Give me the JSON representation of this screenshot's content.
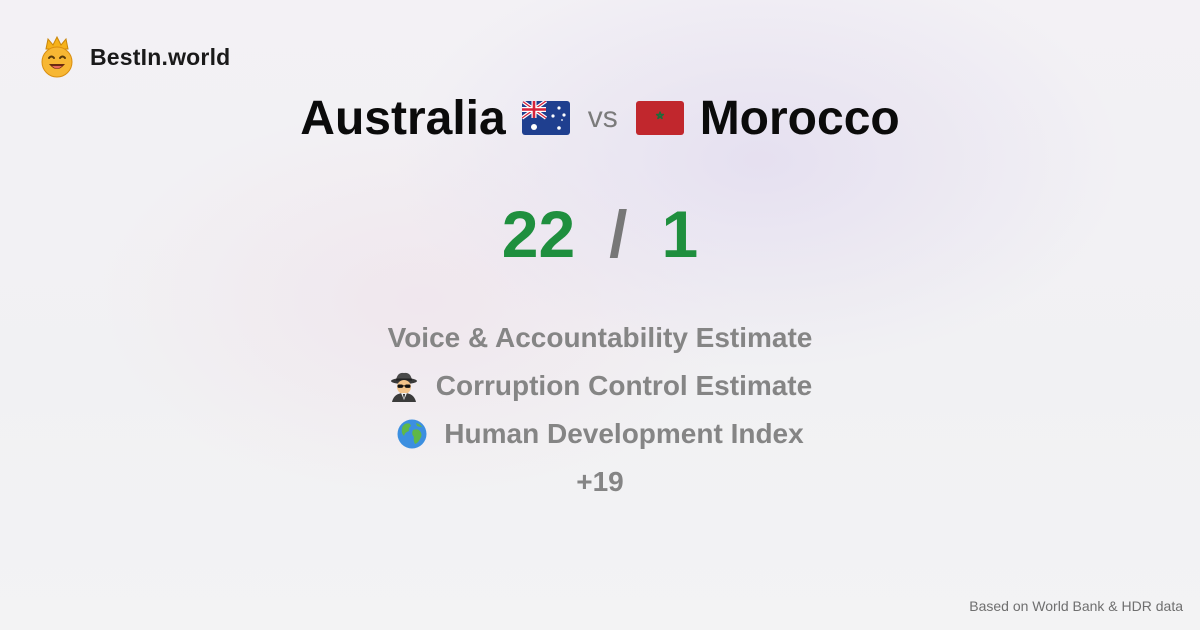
{
  "brand": {
    "name": "BestIn.world",
    "logo_icon": "crown-smiley-icon"
  },
  "comparison": {
    "left_country": "Australia",
    "left_flag_icon": "australia-flag-icon",
    "vs": "vs",
    "right_country": "Morocco",
    "right_flag_icon": "morocco-flag-icon"
  },
  "score": {
    "left": "22",
    "separator": "/",
    "right": "1",
    "color": "#1f8f3e"
  },
  "metrics": [
    {
      "label": "Voice & Accountability Estimate",
      "icon": ""
    },
    {
      "label": "Corruption Control Estimate",
      "icon": "spy-icon"
    },
    {
      "label": "Human Development Index",
      "icon": "globe-icon"
    }
  ],
  "more": "+19",
  "footer": "Based on World Bank & HDR data"
}
